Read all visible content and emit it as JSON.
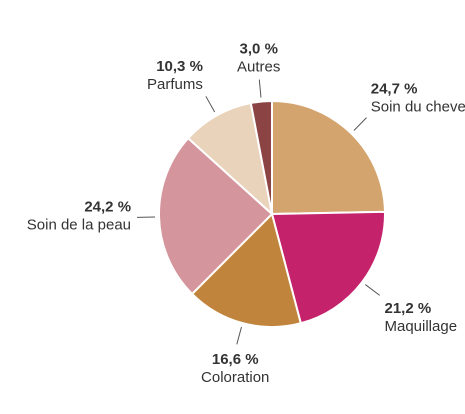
{
  "chart_data": {
    "type": "pie",
    "categories": [
      "Soin du cheveu",
      "Maquillage",
      "Coloration",
      "Soin de la peau",
      "Parfums",
      "Autres"
    ],
    "values": [
      24.7,
      21.2,
      16.6,
      24.2,
      10.3,
      3.0
    ],
    "value_labels": [
      "24,7 %",
      "21,2 %",
      "16,6 %",
      "24,2 %",
      "10,3 %",
      "3,0 %"
    ],
    "colors": [
      "#d4a46e",
      "#c4236b",
      "#c0843c",
      "#d4969c",
      "#ead3bb",
      "#8b4343"
    ]
  }
}
